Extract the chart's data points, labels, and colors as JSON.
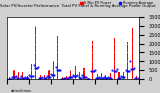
{
  "title": "Solar PV/Inverter Performance  Total PV Panel & Running Average Power Output",
  "background_color": "#d0d0d0",
  "plot_bg_color": "#ffffff",
  "bar_color": "#ff0000",
  "avg_color": "#0000ff",
  "grid_color": "#ffffff",
  "ylim": [
    0,
    3500
  ],
  "yticks": [
    0,
    500,
    1000,
    1500,
    2000,
    2500,
    3000,
    3500
  ],
  "num_bars": 120,
  "legend_bar_label": "5 Min PV Power",
  "legend_avg_label": "Running Average"
}
